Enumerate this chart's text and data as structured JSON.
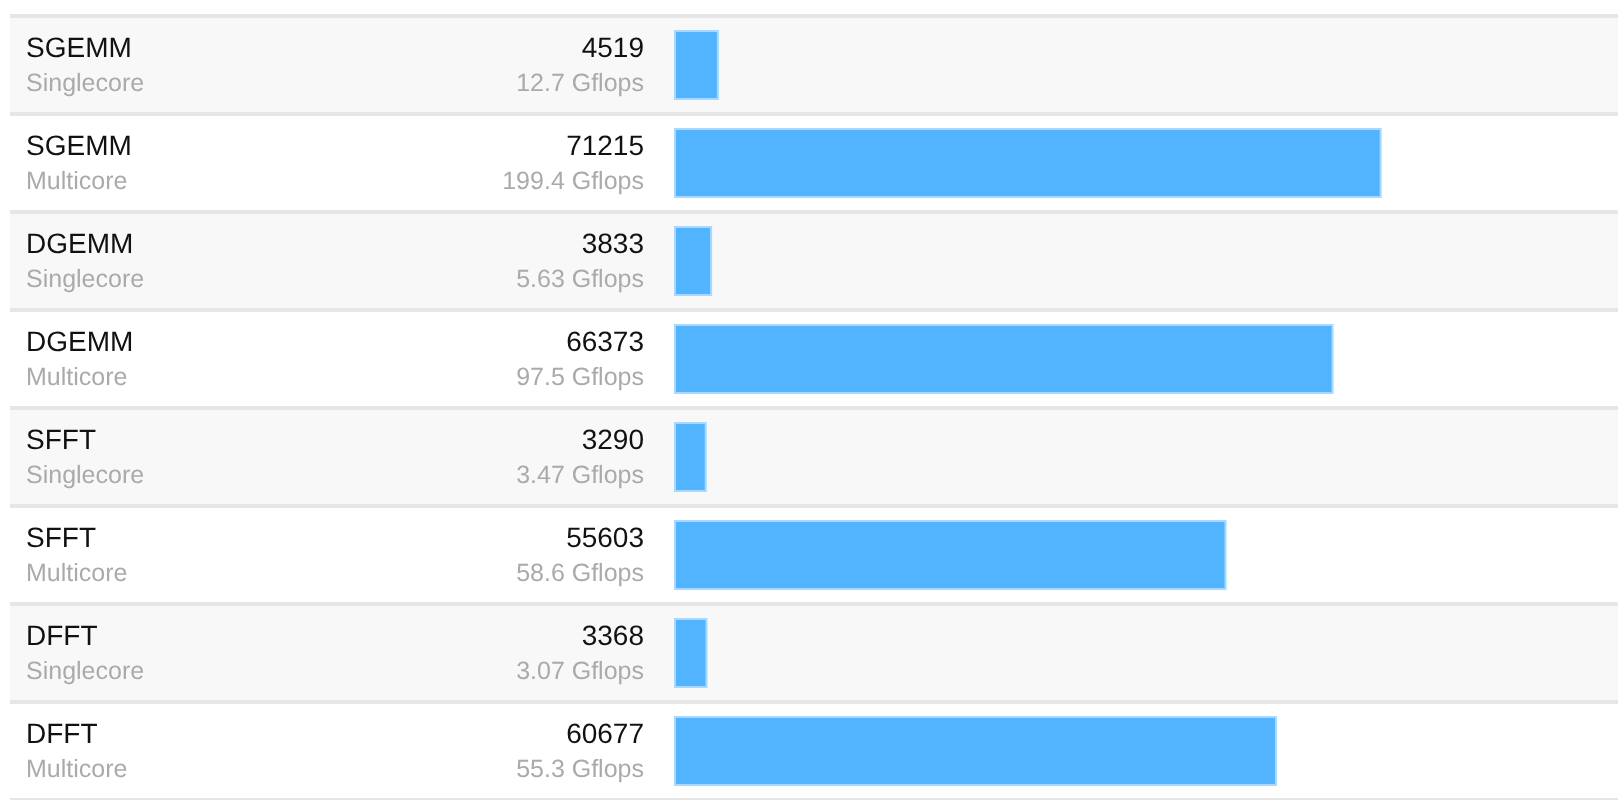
{
  "chart_data": {
    "type": "bar",
    "orientation": "horizontal",
    "categories": [
      "SGEMM\nSinglecore",
      "SGEMM\nMulticore",
      "DGEMM\nSinglecore",
      "DGEMM\nMulticore",
      "SFFT\nSinglecore",
      "SFFT\nMulticore",
      "DFFT\nSinglecore",
      "DFFT\nMulticore"
    ],
    "values": [
      4519,
      71215,
      3833,
      66373,
      3290,
      55603,
      3368,
      60677
    ],
    "data_labels": true,
    "annotations": [
      "12.7 Gflops",
      "199.4 Gflops",
      "5.63 Gflops",
      "97.5 Gflops",
      "3.47 Gflops",
      "58.6 Gflops",
      "3.07 Gflops",
      "55.3 Gflops"
    ],
    "color": "#52b3fe",
    "xlim": [
      0,
      95000
    ]
  }
}
